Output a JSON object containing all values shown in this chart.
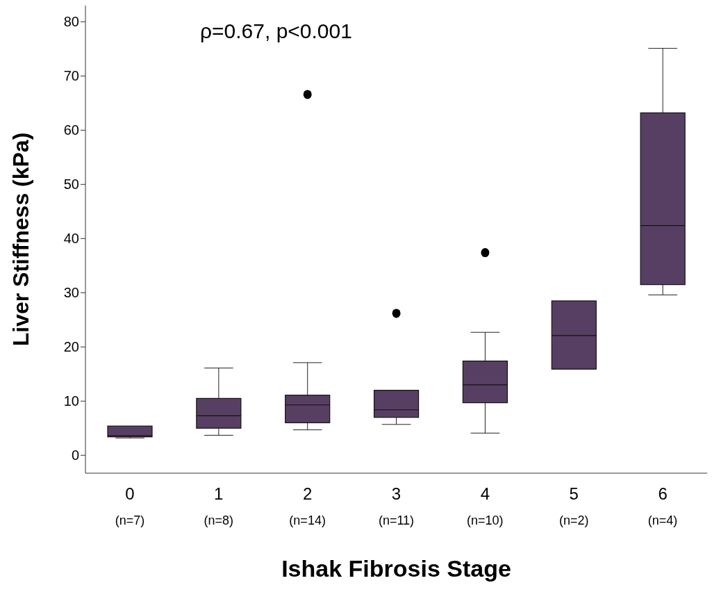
{
  "chart_data": {
    "type": "box",
    "xlabel": "Ishak Fibrosis Stage",
    "ylabel": "Liver Stiffness (kPa)",
    "categories": [
      "0\n(n=7)",
      "1\n(n=8)",
      "2\n(n=14)",
      "3\n(n=11)",
      "4\n(n=10)",
      "5\n(n=2)",
      "6\n(n=4)"
    ],
    "color": "#573f63",
    "boxes": [
      {
        "low": 3.2,
        "q1": 3.4,
        "median": 3.6,
        "q3": 5.4,
        "high": 5.4
      },
      {
        "low": 3.7,
        "q1": 5.0,
        "median": 7.3,
        "q3": 10.5,
        "high": 16.1
      },
      {
        "low": 4.7,
        "q1": 6.0,
        "median": 9.3,
        "q3": 11.1,
        "high": 17.1,
        "outliers": [
          66.6
        ]
      },
      {
        "low": 5.7,
        "q1": 7.0,
        "median": 8.4,
        "q3": 12.0,
        "high": 12.0,
        "outliers": [
          26.2
        ]
      },
      {
        "low": 4.1,
        "q1": 9.7,
        "median": 13.0,
        "q3": 17.4,
        "high": 22.7,
        "outliers": [
          37.4
        ]
      },
      {
        "low": 15.9,
        "q1": 15.9,
        "median": 22.1,
        "q3": 28.5,
        "high": 28.5
      },
      {
        "low": 29.6,
        "q1": 31.5,
        "median": 42.4,
        "q3": 63.2,
        "high": 75.1
      }
    ],
    "ylim": [
      -3.3,
      83
    ],
    "yticks": [
      0,
      10,
      20,
      30,
      40,
      50,
      60,
      70,
      80
    ],
    "grid": false,
    "legend": false,
    "annotations": [
      "ρ=0.67, p<0.001"
    ]
  }
}
